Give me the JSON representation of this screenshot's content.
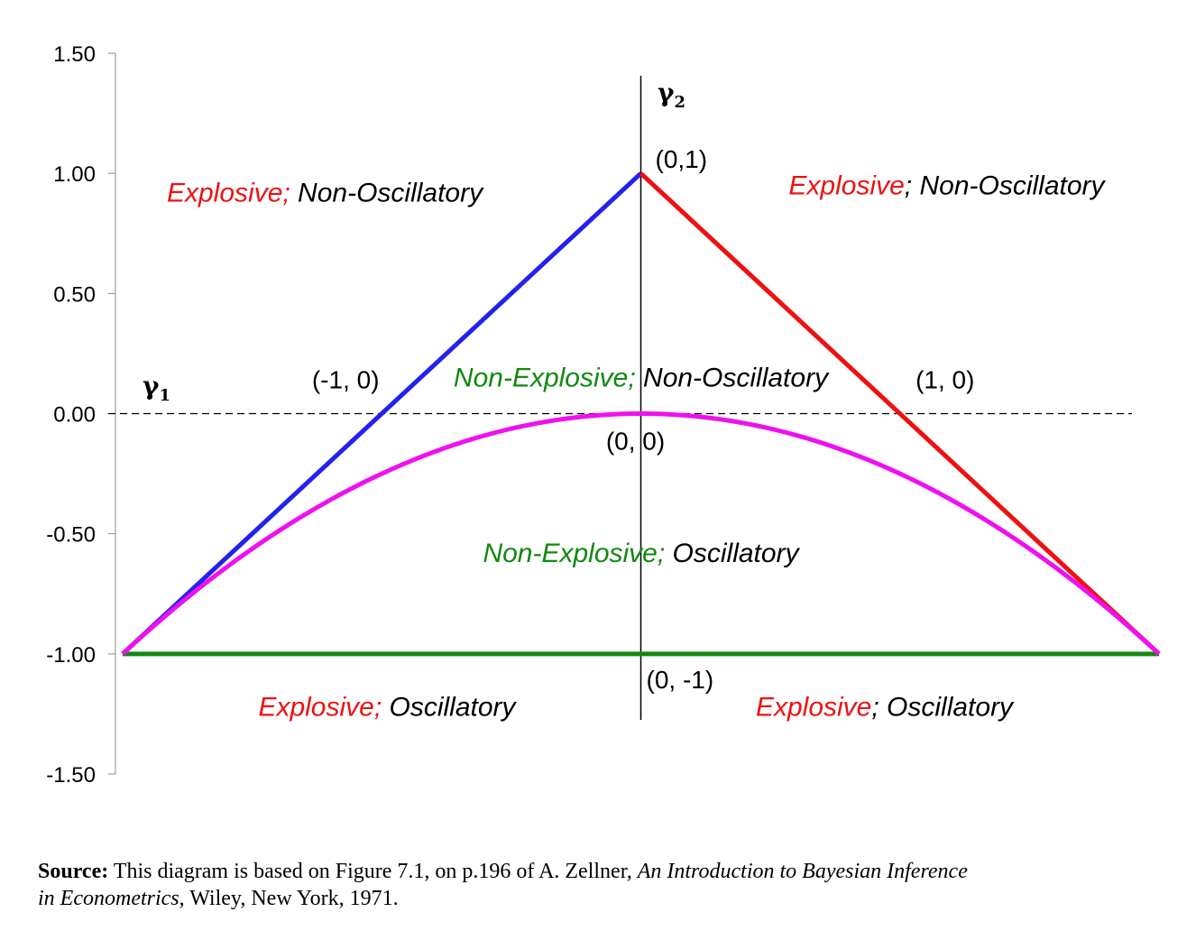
{
  "chart_data": {
    "type": "line",
    "xlabel": "γ1",
    "ylabel": "γ2",
    "xlim": [
      -1,
      1
    ],
    "ylim": [
      -1.5,
      1.5
    ],
    "y_ticks": [
      "1.50",
      "1.00",
      "0.50",
      "0.00",
      "-0.50",
      "-1.00",
      "-1.50"
    ],
    "y_tick_values": [
      1.5,
      1.0,
      0.5,
      0.0,
      -0.5,
      -1.0,
      -1.5
    ],
    "series": [
      {
        "color": "#2222ee",
        "x": [
          -1,
          0
        ],
        "y": [
          -1,
          1
        ]
      },
      {
        "color": "#ee1111",
        "x": [
          0,
          1
        ],
        "y": [
          1,
          -1
        ]
      },
      {
        "color": "#118811",
        "x": [
          -1,
          1
        ],
        "y": [
          -1,
          -1
        ]
      },
      {
        "color": "#ee11ee",
        "curve": "parabola",
        "x": [
          -1,
          0,
          1
        ],
        "y": [
          -1,
          0,
          -1
        ]
      }
    ],
    "point_labels": [
      {
        "text": "(0,1)",
        "x": 0,
        "y": 1
      },
      {
        "text": "(-1, 0)",
        "x": -0.5,
        "y": 0
      },
      {
        "text": "(1, 0)",
        "x": 0.5,
        "y": 0
      },
      {
        "text": "(0, 0)",
        "x": 0,
        "y": 0
      },
      {
        "text": "(0, -1)",
        "x": 0,
        "y": -1
      }
    ],
    "region_labels": [
      {
        "colored": "Explosive;",
        "rest": " Non-Oscillatory",
        "color": "#ee1111",
        "x": -0.61,
        "y": 0.92
      },
      {
        "colored": "Explosive",
        "rest": "; Non-Oscillatory",
        "color": "#ee1111",
        "x": 0.59,
        "y": 0.95
      },
      {
        "colored": "Non-Explosive;",
        "rest": " Non-Oscillatory",
        "color": "#118811",
        "x": 0.0,
        "y": 0.15
      },
      {
        "colored": "Non-Explosive;",
        "rest": " Oscillatory",
        "color": "#118811",
        "x": 0.0,
        "y": -0.58
      },
      {
        "colored": "Explosive;",
        "rest": " Oscillatory",
        "color": "#ee1111",
        "x": -0.49,
        "y": -1.22
      },
      {
        "colored": "Explosive",
        "rest": "; Oscillatory",
        "color": "#ee1111",
        "x": 0.47,
        "y": -1.22
      }
    ]
  },
  "source": {
    "label": "Source:",
    "text1": " This diagram is based on Figure 7.1, on p.196 of A. Zellner, ",
    "book_title_1": "An Introduction to Bayesian Inference",
    "book_title_2": "in Econometrics",
    "text2": ", Wiley, New York, 1971."
  }
}
